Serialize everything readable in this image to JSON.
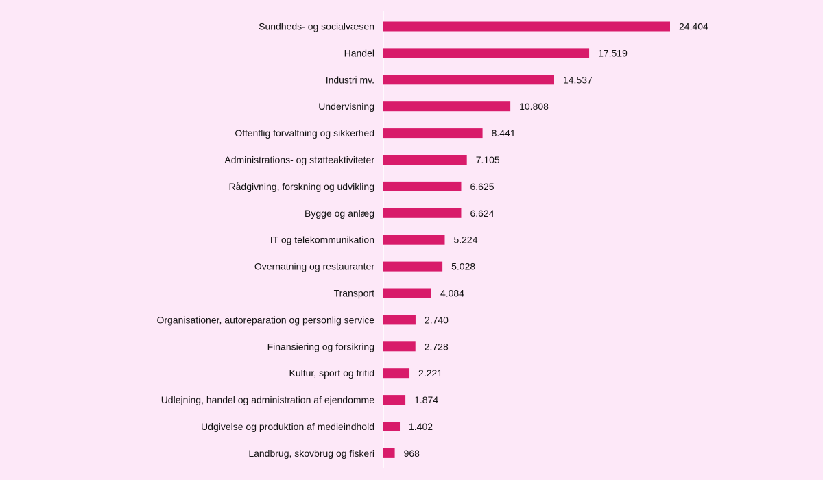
{
  "chart_data": {
    "type": "bar",
    "orientation": "horizontal",
    "categories": [
      "Sundheds- og socialvæsen",
      "Handel",
      "Industri mv.",
      "Undervisning",
      "Offentlig forvaltning og sikkerhed",
      "Administrations- og støtteaktiviteter",
      "Rådgivning, forskning og udvikling",
      "Bygge og anlæg",
      "IT og telekommunikation",
      "Overnatning og restauranter",
      "Transport",
      "Organisationer, autoreparation og personlig service",
      "Finansiering og forsikring",
      "Kultur, sport og fritid",
      "Udlejning, handel og administration af ejendomme",
      "Udgivelse og produktion af medieindhold",
      "Landbrug, skovbrug og fiskeri"
    ],
    "values": [
      24404,
      17519,
      14537,
      10808,
      8441,
      7105,
      6625,
      6624,
      5224,
      5028,
      4084,
      2740,
      2728,
      2221,
      1874,
      1402,
      968
    ],
    "value_labels": [
      "24.404",
      "17.519",
      "14.537",
      "10.808",
      "8.441",
      "7.105",
      "6.625",
      "6.624",
      "5.224",
      "5.028",
      "4.084",
      "2.740",
      "2.728",
      "2.221",
      "1.874",
      "1.402",
      "968"
    ],
    "title": "",
    "xlabel": "",
    "ylabel": "",
    "xlim": [
      0,
      24404
    ],
    "grid": false,
    "legend": "none",
    "bar_color": "#d81b6a",
    "background_color": "#fde8f8",
    "axis_color": "#ffffff"
  }
}
